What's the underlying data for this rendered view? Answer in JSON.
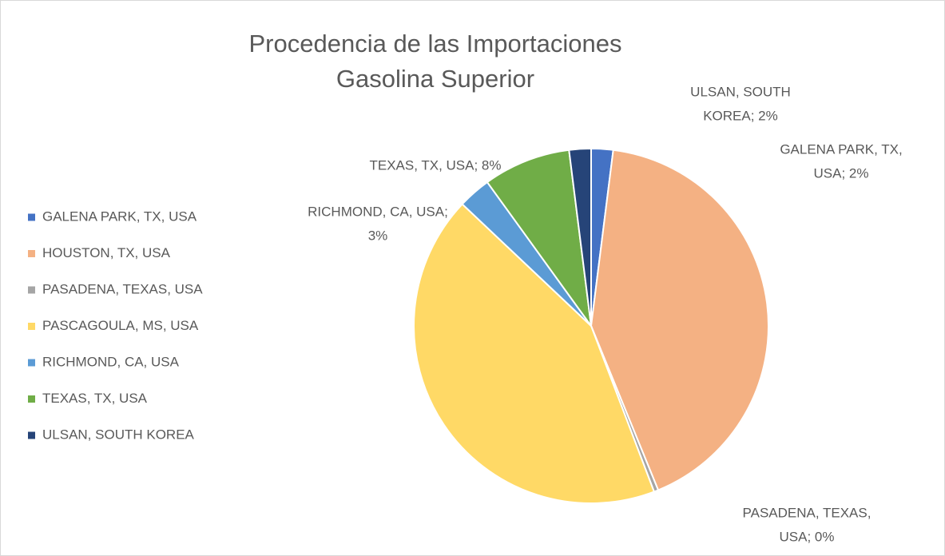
{
  "chart_data": {
    "type": "pie",
    "title": [
      "Procedencia de las Importaciones",
      "Gasolina Superior"
    ],
    "categories": [
      "GALENA PARK, TX, USA",
      "HOUSTON, TX, USA",
      "PASADENA, TEXAS, USA",
      "PASCAGOULA, MS, USA",
      "RICHMOND, CA, USA",
      "TEXAS, TX, USA",
      "ULSAN, SOUTH KOREA"
    ],
    "values": [
      2,
      42,
      0.4,
      43,
      3,
      8,
      2
    ],
    "value_labels": [
      [
        "GALENA PARK, TX,",
        "USA; 2%"
      ],
      null,
      [
        "PASADENA, TEXAS,",
        "USA; 0%"
      ],
      null,
      [
        "RICHMOND, CA, USA;",
        "3%"
      ],
      [
        "TEXAS, TX, USA; 8%"
      ],
      [
        "ULSAN, SOUTH",
        "KOREA; 2%"
      ]
    ],
    "colors": [
      "#4472c4",
      "#f4b183",
      "#a5a5a5",
      "#ffd966",
      "#5b9bd5",
      "#70ad47",
      "#264478"
    ],
    "legend": "left"
  }
}
